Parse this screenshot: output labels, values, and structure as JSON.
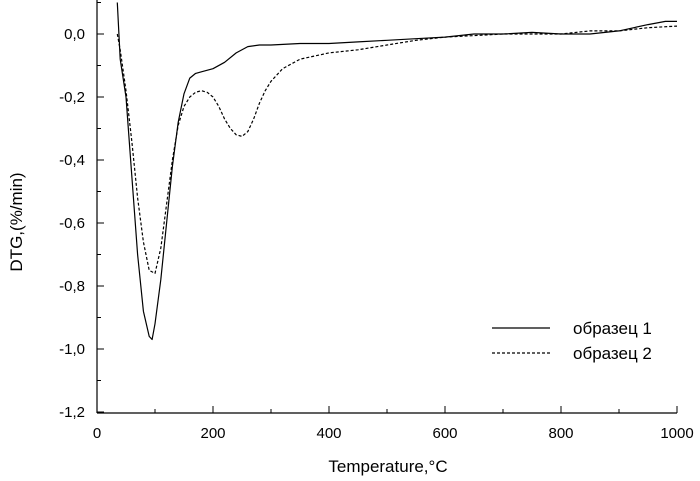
{
  "chart_data": {
    "type": "line",
    "title": "",
    "xlabel": "Temperature,°C",
    "ylabel": "DTG,(%/min)",
    "xlim": [
      0,
      1000
    ],
    "ylim": [
      -1.2,
      0.1
    ],
    "x_ticks": [
      0,
      200,
      400,
      600,
      800,
      1000
    ],
    "x_tick_labels": [
      "0",
      "200",
      "400",
      "600",
      "800",
      "1000"
    ],
    "y_ticks": [
      0.0,
      -0.2,
      -0.4,
      -0.6,
      -0.8,
      -1.0,
      -1.2
    ],
    "y_tick_labels": [
      "0,0",
      "-0,2",
      "-0,4",
      "-0,6",
      "-0,8",
      "-1,0",
      "-1,2"
    ],
    "grid": false,
    "legend_position": "lower-right",
    "series": [
      {
        "name": "образец 1",
        "style": "solid",
        "color": "#000000",
        "x": [
          35,
          40,
          50,
          60,
          70,
          80,
          90,
          95,
          100,
          110,
          120,
          130,
          140,
          150,
          160,
          170,
          180,
          200,
          220,
          240,
          260,
          280,
          300,
          350,
          400,
          450,
          500,
          550,
          600,
          650,
          700,
          750,
          800,
          850,
          900,
          950,
          980,
          1000
        ],
        "y": [
          0.1,
          -0.08,
          -0.2,
          -0.45,
          -0.7,
          -0.88,
          -0.96,
          -0.97,
          -0.92,
          -0.78,
          -0.6,
          -0.42,
          -0.28,
          -0.19,
          -0.14,
          -0.125,
          -0.12,
          -0.11,
          -0.09,
          -0.06,
          -0.04,
          -0.035,
          -0.035,
          -0.03,
          -0.03,
          -0.025,
          -0.02,
          -0.015,
          -0.01,
          0.0,
          0.0,
          0.005,
          0.0,
          0.0,
          0.01,
          0.03,
          0.04,
          0.04
        ]
      },
      {
        "name": "образец 2",
        "style": "dashed",
        "color": "#000000",
        "x": [
          35,
          40,
          50,
          60,
          70,
          80,
          90,
          100,
          110,
          120,
          130,
          140,
          150,
          160,
          170,
          180,
          190,
          200,
          210,
          220,
          230,
          240,
          250,
          260,
          270,
          280,
          290,
          300,
          320,
          350,
          400,
          450,
          500,
          550,
          600,
          650,
          700,
          750,
          800,
          850,
          900,
          950,
          1000
        ],
        "y": [
          0.0,
          -0.05,
          -0.18,
          -0.34,
          -0.52,
          -0.66,
          -0.75,
          -0.76,
          -0.68,
          -0.54,
          -0.4,
          -0.29,
          -0.23,
          -0.2,
          -0.185,
          -0.18,
          -0.185,
          -0.2,
          -0.23,
          -0.27,
          -0.3,
          -0.32,
          -0.325,
          -0.31,
          -0.27,
          -0.22,
          -0.18,
          -0.15,
          -0.11,
          -0.08,
          -0.06,
          -0.05,
          -0.035,
          -0.02,
          -0.01,
          -0.005,
          0.0,
          0.0,
          0.0,
          0.01,
          0.01,
          0.02,
          0.025
        ]
      }
    ]
  }
}
